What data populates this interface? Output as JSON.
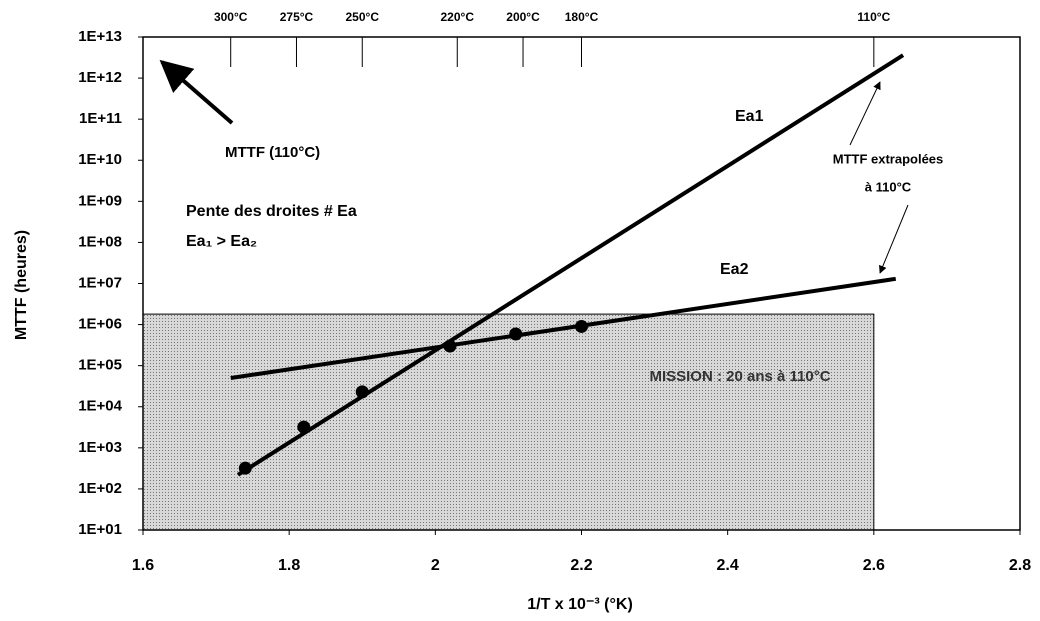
{
  "chart_data": {
    "type": "scatter",
    "xlabel": "1/T x 10⁻³ (°K)",
    "ylabel": "MTTF (heures)",
    "xlim": [
      1.6,
      2.8
    ],
    "ylim": [
      10,
      10000000000000
    ],
    "log_y": true,
    "xticks": [
      1.6,
      1.8,
      2,
      2.2,
      2.4,
      2.6,
      2.8
    ],
    "yticks": [
      {
        "value": 10,
        "label": "1E+01"
      },
      {
        "value": 100,
        "label": "1E+02"
      },
      {
        "value": 1000,
        "label": "1E+03"
      },
      {
        "value": 10000,
        "label": "1E+04"
      },
      {
        "value": 100000,
        "label": "1E+05"
      },
      {
        "value": 1000000,
        "label": "1E+06"
      },
      {
        "value": 10000000,
        "label": "1E+07"
      },
      {
        "value": 100000000,
        "label": "1E+08"
      },
      {
        "value": 1000000000,
        "label": "1E+09"
      },
      {
        "value": 10000000000,
        "label": "1E+10"
      },
      {
        "value": 100000000000,
        "label": "1E+11"
      },
      {
        "value": 1000000000000,
        "label": "1E+12"
      },
      {
        "value": 10000000000000,
        "label": "1E+13"
      }
    ],
    "x2ticks": [
      {
        "value": 1.72,
        "label": "300°C"
      },
      {
        "value": 1.81,
        "label": "275°C"
      },
      {
        "value": 1.9,
        "label": "250°C"
      },
      {
        "value": 2.03,
        "label": "220°C"
      },
      {
        "value": 2.12,
        "label": "200°C"
      },
      {
        "value": 2.2,
        "label": "180°C"
      },
      {
        "value": 2.6,
        "label": "110°C"
      }
    ],
    "series": [
      {
        "name": "Ea1",
        "color": "#000000",
        "x": [
          1.74,
          1.82,
          1.9,
          2.02
        ],
        "values": [
          320,
          3200,
          23000,
          300000
        ],
        "fit_x": [
          1.73,
          2.64
        ],
        "fit_values": [
          220,
          3600000000000
        ]
      },
      {
        "name": "Ea2",
        "color": "#000000",
        "x": [
          2.11,
          2.2
        ],
        "values": [
          590000,
          900000
        ],
        "fit_x": [
          1.72,
          2.63
        ],
        "fit_values": [
          50000,
          13000000
        ]
      }
    ],
    "mission": {
      "x": [
        1.6,
        2.6
      ],
      "y": [
        10,
        1800000
      ],
      "label": "MISSION : 20 ans à 110°C",
      "color": "#c4c4c4"
    },
    "annotations": [
      "MTTF (110°C)",
      "Pente des droites # Ea",
      "Ea₁ > Ea₂",
      "MTTF extrapolées",
      "à 110°C"
    ]
  }
}
